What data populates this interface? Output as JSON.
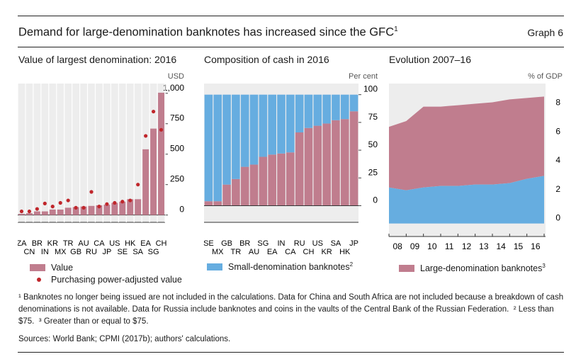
{
  "header": {
    "title": "Demand for large-denomination banknotes has increased since the GFC",
    "title_note": "1",
    "graph_label": "Graph 6"
  },
  "colors": {
    "value": "#c07d8e",
    "ppp": "#c0262b",
    "small": "#66ade0",
    "large": "#c07d8e",
    "bg": "#ededed"
  },
  "chart_data": [
    {
      "type": "bar",
      "title": "Value of largest denomination: 2016",
      "unit": "USD",
      "categories": [
        "ZA",
        "CN",
        "BR",
        "IN",
        "KR",
        "MX",
        "TR",
        "GB",
        "AU",
        "RU",
        "CA",
        "JP",
        "US",
        "SE",
        "HK",
        "SA",
        "EA",
        "SG",
        "CH"
      ],
      "x_labels_top": [
        "ZA",
        "BR",
        "KR",
        "TR",
        "AU",
        "CA",
        "US",
        "HK",
        "EA",
        "CH"
      ],
      "x_labels_bottom": [
        "CN",
        "IN",
        "MX",
        "GB",
        "RU",
        "JP",
        "SE",
        "SA",
        "SG"
      ],
      "ylim": [
        -60,
        1080
      ],
      "yticks": [
        0,
        250,
        500,
        750,
        1000
      ],
      "ytick_labels": [
        "0",
        "250",
        "500",
        "750",
        "1,000"
      ],
      "series": [
        {
          "name": "Value",
          "type": "bar",
          "values": [
            10,
            15,
            30,
            30,
            45,
            45,
            60,
            65,
            70,
            75,
            80,
            85,
            100,
            110,
            130,
            130,
            540,
            710,
            1005
          ]
        },
        {
          "name": "Purchasing power-adjusted value",
          "type": "scatter",
          "values": [
            30,
            30,
            50,
            95,
            70,
            100,
            120,
            60,
            60,
            190,
            70,
            90,
            100,
            110,
            120,
            250,
            650,
            850,
            700
          ]
        }
      ]
    },
    {
      "type": "bar",
      "title": "Composition of cash in 2016",
      "unit": "Per cent",
      "categories": [
        "SE",
        "MX",
        "GB",
        "TR",
        "BR",
        "AU",
        "SG",
        "EA",
        "IN",
        "CA",
        "RU",
        "CH",
        "US",
        "KR",
        "SA",
        "HK",
        "JP"
      ],
      "x_labels_top": [
        "SE",
        "GB",
        "BR",
        "SG",
        "IN",
        "RU",
        "US",
        "SA",
        "JP"
      ],
      "x_labels_bottom": [
        "MX",
        "TR",
        "AU",
        "EA",
        "CA",
        "CH",
        "KR",
        "HK"
      ],
      "ylim": [
        -15,
        110
      ],
      "yticks": [
        0,
        25,
        50,
        75,
        100
      ],
      "ytick_labels": [
        "0",
        "25",
        "50",
        "75",
        "100"
      ],
      "series": [
        {
          "name": "Large-denomination",
          "values": [
            4,
            4,
            19,
            24,
            35,
            37,
            44,
            46,
            47,
            48,
            66,
            70,
            72,
            74,
            77,
            78,
            85
          ]
        },
        {
          "name": "Small-denomination banknotes",
          "values": [
            96,
            96,
            81,
            76,
            65,
            63,
            56,
            54,
            53,
            52,
            34,
            30,
            28,
            26,
            23,
            22,
            15
          ]
        }
      ]
    },
    {
      "type": "area",
      "title": "Evolution 2007–16",
      "unit": "% of GDP",
      "x": [
        2007,
        2008,
        2009,
        2010,
        2011,
        2012,
        2013,
        2014,
        2015,
        2016
      ],
      "x_labels": [
        "08",
        "09",
        "10",
        "11",
        "12",
        "13",
        "14",
        "15",
        "16"
      ],
      "ylim": [
        -0.9,
        9.7
      ],
      "yticks": [
        0,
        2,
        4,
        6,
        8
      ],
      "ytick_labels": [
        "0",
        "2",
        "4",
        "6",
        "8"
      ],
      "series": [
        {
          "name": "Small-denomination",
          "values": [
            2.5,
            2.3,
            2.5,
            2.6,
            2.6,
            2.7,
            2.7,
            2.8,
            3.1,
            3.3
          ]
        },
        {
          "name": "Large-denomination banknotes",
          "values": [
            4.2,
            4.8,
            5.6,
            5.5,
            5.6,
            5.6,
            5.7,
            5.8,
            5.6,
            5.5
          ]
        }
      ]
    }
  ],
  "legends": {
    "p1_value": "Value",
    "p1_ppp": "Purchasing power-adjusted value",
    "p2_small": "Small-denomination banknotes",
    "p2_small_note": "2",
    "p3_large": "Large-denomination banknotes",
    "p3_large_note": "3"
  },
  "footnotes": {
    "n1_mark": "¹",
    "n1": "Banknotes no longer being issued are not included in the calculations. Data for China and South Africa are not included because a breakdown of cash denominations is not available. Data for Russia include banknotes and coins in the vaults of the Central Bank of the Russian Federation.",
    "n2_mark": "²",
    "n2": "Less than $75.",
    "n3_mark": "³",
    "n3": "Greater than or equal to $75."
  },
  "sources": "Sources: World Bank; CPMI (2017b); authors' calculations."
}
